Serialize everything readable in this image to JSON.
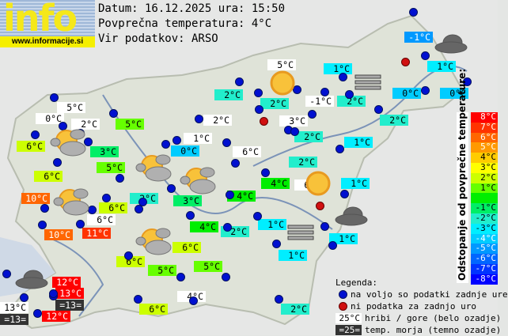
{
  "logo": {
    "text": "info",
    "url": "www.informacije.si"
  },
  "header": {
    "date_line": "Datum: 16.12.2025 ura: 15:50",
    "avg_line": "Povprečna temperatura: 4°C",
    "source_line": "Vir podatkov: ARSO"
  },
  "colors": {
    "d8": "#ff0000",
    "d7": "#ff3300",
    "d6": "#ff6600",
    "d5": "#ff9900",
    "d4": "#ffcc00",
    "d3": "#ffff00",
    "d2": "#ccff00",
    "d1": "#66ff00",
    "d0": "#00ee00",
    "m1": "#00ee66",
    "m2": "#22eecc",
    "m3": "#00eeff",
    "m4": "#00ccff",
    "m5": "#0099ff",
    "m6": "#0066ff",
    "m7": "#0033ff",
    "m8": "#0000ff",
    "hill": "#ffffff",
    "sea": "#333333"
  },
  "stations": [
    {
      "t": "5°C",
      "c": "hill"
    },
    {
      "t": "0°C",
      "c": "hill"
    },
    {
      "t": "2°C",
      "c": "hill"
    },
    {
      "t": "5°C",
      "c": "d1"
    },
    {
      "t": "6°C",
      "c": "d2"
    },
    {
      "t": "3°C",
      "c": "m1"
    },
    {
      "t": "5°C",
      "c": "d1"
    },
    {
      "t": "6°C",
      "c": "d2"
    },
    {
      "t": "10°C",
      "c": "d6"
    },
    {
      "t": "6°C",
      "c": "d2"
    },
    {
      "t": "2°C",
      "c": "m2"
    },
    {
      "t": "6°C",
      "c": "hill"
    },
    {
      "t": "10°C",
      "c": "d6"
    },
    {
      "t": "11°C",
      "c": "d7"
    },
    {
      "t": "2°C",
      "c": "hill"
    },
    {
      "t": "1°C",
      "c": "hill"
    },
    {
      "t": "0°C",
      "c": "m4"
    },
    {
      "t": "6°C",
      "c": "hill"
    },
    {
      "t": "3°C",
      "c": "m1"
    },
    {
      "t": "4°C",
      "c": "d0"
    },
    {
      "t": "4°C",
      "c": "d0"
    },
    {
      "t": "2°C",
      "c": "m2"
    },
    {
      "t": "6°C",
      "c": "d2"
    },
    {
      "t": "6°C",
      "c": "d2"
    },
    {
      "t": "5°C",
      "c": "d1"
    },
    {
      "t": "5°C",
      "c": "d1"
    },
    {
      "t": "6°C",
      "c": "d2"
    },
    {
      "t": "4°C",
      "c": "hill"
    },
    {
      "t": "2°C",
      "c": "m2"
    },
    {
      "t": "5°C",
      "c": "hill"
    },
    {
      "t": "1°C",
      "c": "m3"
    },
    {
      "t": "2°C",
      "c": "m2"
    },
    {
      "t": "2°C",
      "c": "m2"
    },
    {
      "t": "-1°C",
      "c": "hill"
    },
    {
      "t": "2°C",
      "c": "m2"
    },
    {
      "t": "3°C",
      "c": "hill"
    },
    {
      "t": "2°C",
      "c": "m2"
    },
    {
      "t": "2°C",
      "c": "m2"
    },
    {
      "t": "1°C",
      "c": "m3"
    },
    {
      "t": "2°C",
      "c": "m2"
    },
    {
      "t": "4°C",
      "c": "d0"
    },
    {
      "t": "6°C",
      "c": "hill"
    },
    {
      "t": "1°C",
      "c": "m3"
    },
    {
      "t": "1°C",
      "c": "m3"
    },
    {
      "t": "1°C",
      "c": "m3"
    },
    {
      "t": "1°C",
      "c": "m3"
    },
    {
      "t": "-1°C",
      "c": "m5"
    },
    {
      "t": "1°C",
      "c": "m3"
    },
    {
      "t": "0°C",
      "c": "m4"
    },
    {
      "t": "0°C",
      "c": "m4"
    },
    {
      "t": "12°C",
      "c": "d8"
    },
    {
      "t": "13°C",
      "c": "d8"
    },
    {
      "t": "=13=",
      "c": "sea"
    },
    {
      "t": "13°C",
      "c": "hill"
    },
    {
      "t": "=13=",
      "c": "sea"
    },
    {
      "t": "12°C",
      "c": "d8"
    }
  ],
  "weather_icons": [
    "sun-cloud-icon",
    "sun-cloud-icon",
    "sun-cloud-icon",
    "sun-cloud-icon",
    "sun-cloud-icon",
    "sun-icon",
    "sun-icon",
    "dark-cloud-icon",
    "dark-cloud-icon",
    "dark-cloud-icon",
    "fog-icon",
    "fog-icon"
  ],
  "scale": {
    "title": "Odstopanje od povprečne temperature:",
    "items": [
      {
        "t": "8°C",
        "c": "d8"
      },
      {
        "t": "7°C",
        "c": "d7"
      },
      {
        "t": "6°C",
        "c": "d6"
      },
      {
        "t": "5°C",
        "c": "d5"
      },
      {
        "t": "4°C",
        "c": "d4"
      },
      {
        "t": "3°C",
        "c": "d3"
      },
      {
        "t": "2°C",
        "c": "d2"
      },
      {
        "t": "1°C",
        "c": "d1"
      },
      {
        "t": "",
        "c": "d0"
      },
      {
        "t": "-1°C",
        "c": "m1"
      },
      {
        "t": "-2°C",
        "c": "m2"
      },
      {
        "t": "-3°C",
        "c": "m3"
      },
      {
        "t": "-4°C",
        "c": "m4"
      },
      {
        "t": "-5°C",
        "c": "m5"
      },
      {
        "t": "-6°C",
        "c": "m6"
      },
      {
        "t": "-7°C",
        "c": "m7"
      },
      {
        "t": "-8°C",
        "c": "m8"
      }
    ]
  },
  "legend": {
    "title": "Legenda:",
    "available": "na voljo so podatki zadnje ure",
    "missing": "ni podatka za zadnjo uro",
    "hill_sample": "25°C",
    "hill_text": "hribi / gore (belo ozadje)",
    "sea_sample": "=25=",
    "sea_text": "temp. morja (temno ozadje)"
  }
}
